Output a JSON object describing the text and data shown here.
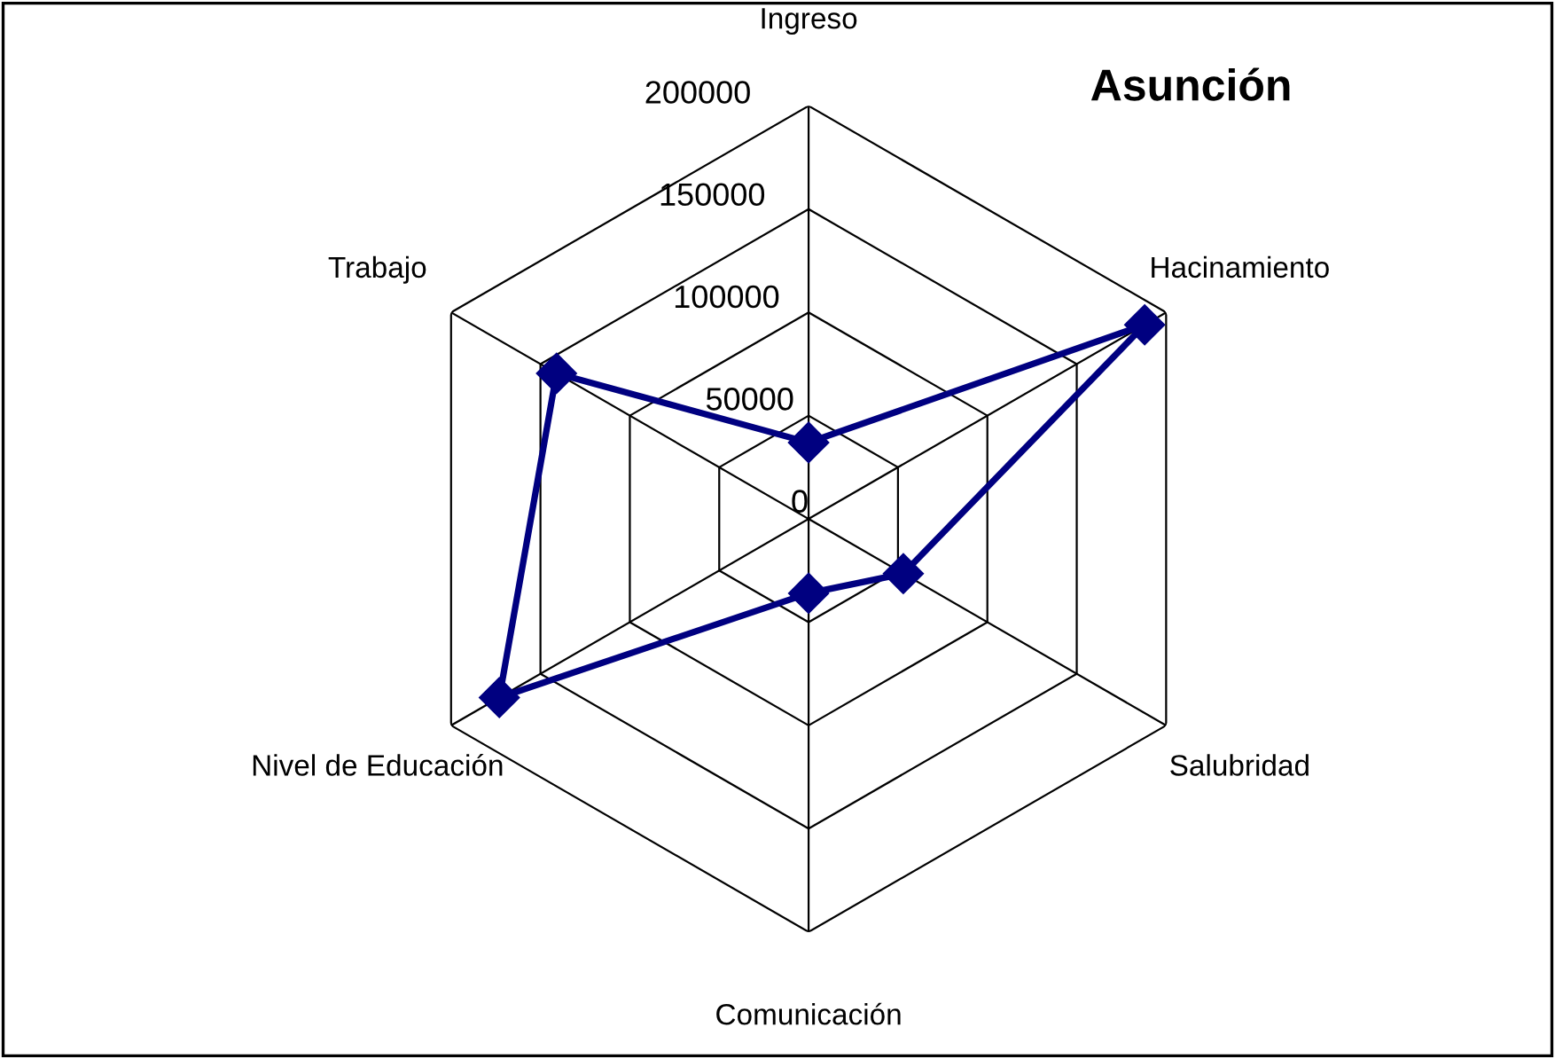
{
  "chart_data": {
    "type": "radar",
    "title": "Asunción",
    "categories": [
      "Ingreso",
      "Hacinamiento",
      "Salubridad",
      "Comunicación",
      "Nivel de Educación",
      "Trabajo"
    ],
    "series": [
      {
        "color": "#000080",
        "values": [
          37000,
          188000,
          53000,
          36000,
          173000,
          141000
        ]
      }
    ],
    "ylim": [
      0,
      200000
    ],
    "yticks": [
      0,
      50000,
      100000,
      150000,
      200000
    ],
    "grid": true,
    "marker": "diamond",
    "line_style": "solid"
  }
}
